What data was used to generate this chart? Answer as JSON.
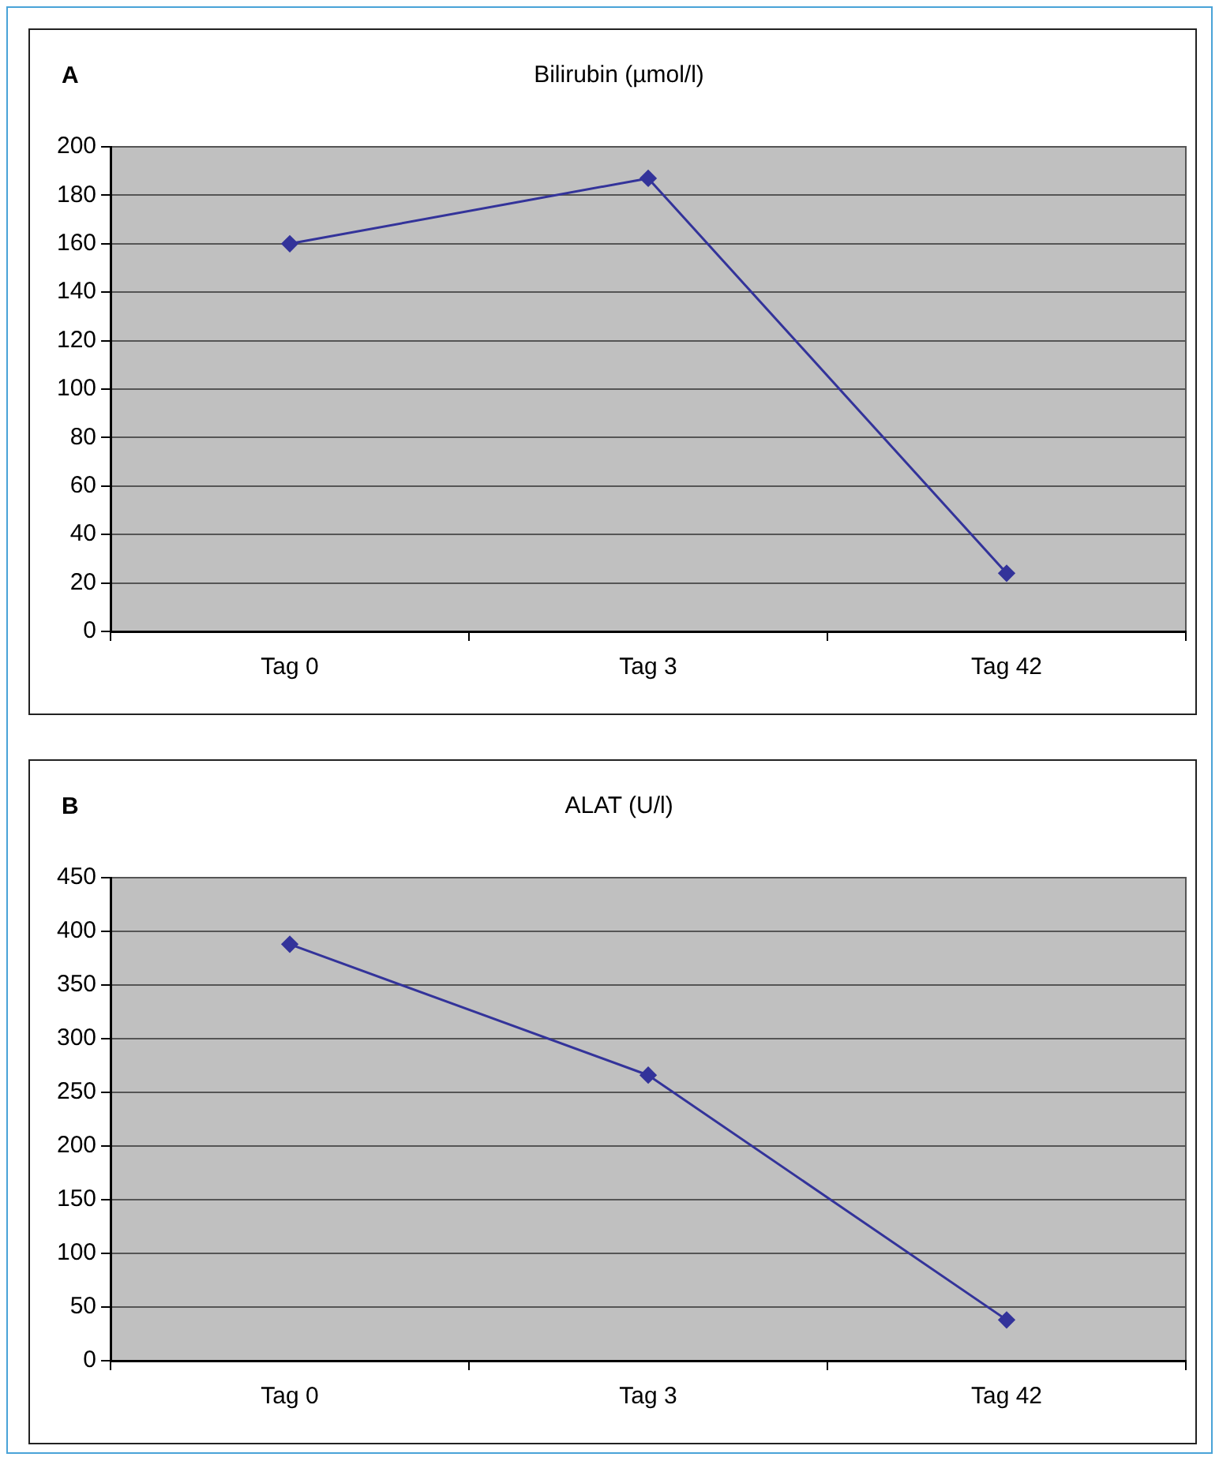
{
  "chart_data": [
    {
      "type": "line",
      "title": "Bilirubin (µmol/l)",
      "annotations": [
        "A"
      ],
      "categories": [
        "Tag 0",
        "Tag 3",
        "Tag 42"
      ],
      "series": [
        {
          "color": "#33339a",
          "values": [
            160,
            187,
            24
          ]
        }
      ],
      "ylim": [
        0,
        200
      ],
      "yticks": [
        0,
        20,
        40,
        60,
        80,
        100,
        120,
        140,
        160,
        180,
        200
      ],
      "grid": "y",
      "legend": false,
      "marker": "diamond",
      "line_style": "solid"
    },
    {
      "type": "line",
      "title": "ALAT (U/l)",
      "annotations": [
        "B"
      ],
      "categories": [
        "Tag 0",
        "Tag 3",
        "Tag 42"
      ],
      "series": [
        {
          "color": "#33339a",
          "values": [
            388,
            266,
            38
          ]
        }
      ],
      "ylim": [
        0,
        450
      ],
      "yticks": [
        0,
        50,
        100,
        150,
        200,
        250,
        300,
        350,
        400,
        450
      ],
      "grid": "y",
      "legend": false,
      "marker": "diamond",
      "line_style": "solid"
    }
  ]
}
